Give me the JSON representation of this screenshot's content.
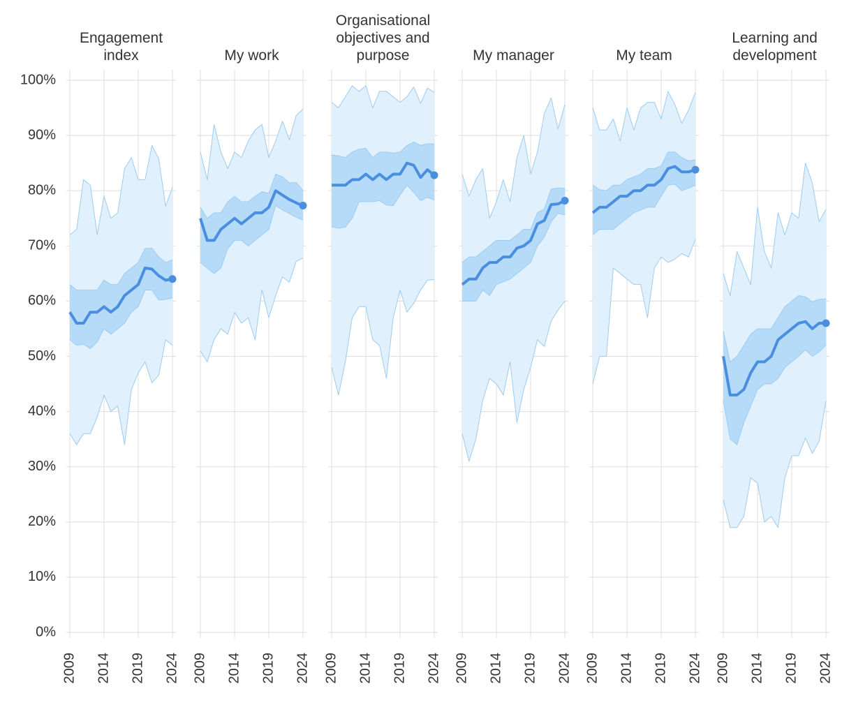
{
  "chart_data": {
    "type": "line",
    "x": [
      2009,
      2010,
      2011,
      2012,
      2013,
      2014,
      2015,
      2016,
      2017,
      2018,
      2019,
      2020,
      2021,
      2022,
      2023,
      2024
    ],
    "xlim": [
      2009,
      2024
    ],
    "xticks": [
      2009,
      2014,
      2019,
      2024
    ],
    "ylim": [
      0,
      100
    ],
    "yticks": [
      {
        "value": 0,
        "label": "0%"
      },
      {
        "value": 10,
        "label": "10%"
      },
      {
        "value": 20,
        "label": "20%"
      },
      {
        "value": 30,
        "label": "30%"
      },
      {
        "value": 40,
        "label": "40%"
      },
      {
        "value": 50,
        "label": "50%"
      },
      {
        "value": 60,
        "label": "60%"
      },
      {
        "value": 70,
        "label": "70%"
      },
      {
        "value": 80,
        "label": "80%"
      },
      {
        "value": 90,
        "label": "90%"
      },
      {
        "value": 100,
        "label": "100%"
      }
    ],
    "grid": true,
    "line_color": "#4a8ee0",
    "inner_color": "#b6dbf8",
    "outer_color": "#e1f0fd",
    "edge_color": "#9dcbf1",
    "panels": [
      {
        "title": "Engagement index",
        "values": [
          58,
          56,
          56,
          58,
          58,
          59,
          58,
          59,
          61,
          62,
          63,
          66,
          65.8,
          64.6,
          63.8,
          64
        ],
        "inner_high": [
          63,
          62,
          62,
          62,
          62,
          63.8,
          63,
          63,
          65,
          66,
          67,
          69.5,
          69.6,
          68,
          67,
          67.5
        ],
        "inner_low": [
          53,
          52,
          52.2,
          51.4,
          52.6,
          55,
          54,
          55,
          56,
          58,
          59,
          62,
          62,
          60.2,
          60.3,
          60.6
        ],
        "outer_high": [
          72,
          73,
          82,
          81,
          72,
          79,
          75,
          76,
          84,
          86,
          82,
          82,
          88.2,
          85.8,
          77.2,
          80.6
        ],
        "outer_low": [
          36,
          34,
          36,
          36,
          39,
          43,
          40,
          41,
          34,
          44,
          47,
          49,
          45.2,
          46.6,
          53,
          52
        ]
      },
      {
        "title": "My work",
        "values": [
          75,
          71,
          71,
          73,
          74,
          75,
          74,
          75,
          76,
          76,
          77,
          80,
          79.2,
          78.4,
          77.8,
          77.3
        ],
        "inner_high": [
          77,
          75,
          76,
          76,
          78,
          79,
          78,
          78,
          79,
          79.8,
          79.5,
          83,
          82.5,
          81.4,
          81.5,
          80
        ],
        "inner_low": [
          67,
          66,
          65,
          66,
          69.5,
          71,
          71,
          70,
          71,
          72,
          73,
          77.3,
          76.5,
          75.9,
          75.2,
          74.7
        ],
        "outer_high": [
          87,
          82,
          92,
          87,
          84,
          87,
          86,
          89,
          91,
          92,
          86,
          89,
          92.6,
          89.2,
          93.6,
          94.8
        ],
        "outer_low": [
          51,
          49,
          53,
          55,
          54,
          58,
          56,
          57,
          53,
          62,
          57,
          61,
          64.4,
          63.4,
          67.2,
          67.8
        ]
      },
      {
        "title": "Organisational objectives and purpose",
        "values": [
          81,
          81,
          81,
          82,
          82,
          83,
          82,
          83,
          82,
          83,
          83,
          85,
          84.6,
          82.4,
          83.8,
          82.8
        ],
        "inner_high": [
          86.5,
          86.3,
          86,
          87,
          87.5,
          87.7,
          86,
          87,
          87,
          86.8,
          87,
          88.2,
          88.8,
          88.2,
          88.5,
          88.5
        ],
        "inner_low": [
          73.5,
          73.2,
          73.4,
          75,
          78,
          78,
          78,
          78.2,
          77.4,
          77.3,
          79.2,
          81,
          79.7,
          78.2,
          78.8,
          78.3
        ],
        "outer_high": [
          96,
          95,
          97,
          99,
          98,
          99,
          95,
          98,
          98,
          97,
          96,
          97,
          98.8,
          95.8,
          98.6,
          97.8
        ],
        "outer_low": [
          48,
          43,
          49,
          57,
          59,
          59,
          53,
          52,
          46,
          57,
          62,
          58,
          59.6,
          62,
          63.8,
          63.9
        ]
      },
      {
        "title": "My manager",
        "values": [
          63,
          64,
          64,
          66,
          67,
          67,
          68,
          68,
          69.6,
          70,
          71,
          74,
          74.6,
          77.5,
          77.6,
          78.2
        ],
        "inner_high": [
          67,
          68,
          68,
          69,
          70,
          71,
          71,
          71,
          72,
          73,
          73,
          76,
          76.7,
          80.3,
          80.5,
          80.4
        ],
        "inner_low": [
          60,
          60,
          60,
          62,
          61,
          63,
          63.5,
          64,
          65,
          66,
          67,
          70,
          71.6,
          74.4,
          75.9,
          75.6
        ],
        "outer_high": [
          83,
          79,
          82,
          84,
          75,
          78,
          82,
          78,
          86,
          90,
          83,
          87,
          94,
          96.8,
          91.2,
          95.6
        ],
        "outer_low": [
          36,
          31,
          35,
          42,
          46,
          45,
          43,
          49,
          38,
          44,
          48,
          53,
          51.8,
          56.4,
          58.4,
          60
        ]
      },
      {
        "title": "My team",
        "values": [
          76,
          77,
          77,
          78,
          79,
          79,
          80,
          80,
          81,
          81,
          82,
          84,
          84.4,
          83.4,
          83.4,
          83.8
        ],
        "inner_high": [
          81,
          80.2,
          80,
          81,
          81,
          82,
          82.5,
          83,
          84,
          84,
          84.5,
          87,
          87,
          86,
          85.4,
          85.6
        ],
        "inner_low": [
          72,
          73,
          73,
          73,
          74,
          75,
          76,
          76.5,
          77,
          77,
          79,
          81,
          81.2,
          80,
          80.5,
          81
        ],
        "outer_high": [
          95,
          91,
          91,
          93,
          89,
          95,
          91,
          95,
          96,
          96,
          93,
          98,
          95.6,
          92.2,
          94.6,
          97.8
        ],
        "outer_low": [
          45,
          50,
          50,
          66,
          65,
          64,
          63,
          63,
          57,
          66,
          68,
          67,
          67.6,
          68.6,
          68,
          71.2
        ]
      },
      {
        "title": "Learning and development",
        "values": [
          50,
          43,
          43,
          44,
          47,
          49,
          49,
          50,
          53,
          54,
          55,
          56,
          56.3,
          55,
          56,
          56
        ],
        "inner_high": [
          54.5,
          49,
          50,
          52,
          54,
          55,
          55,
          55,
          57,
          59,
          60,
          61,
          60.8,
          59.9,
          60.3,
          60.4
        ],
        "inner_low": [
          42,
          35,
          34,
          38,
          41,
          44,
          45,
          45,
          46,
          48,
          49,
          50,
          51.2,
          50,
          50.8,
          52
        ],
        "outer_high": [
          65,
          61,
          69,
          66,
          63,
          77,
          69,
          66,
          76,
          72,
          76,
          75,
          85,
          81.4,
          74.4,
          76.6
        ],
        "outer_low": [
          24,
          19,
          19,
          21,
          28,
          27,
          20,
          21,
          19,
          28,
          32,
          32,
          35.2,
          32.4,
          34.6,
          42
        ]
      }
    ]
  }
}
